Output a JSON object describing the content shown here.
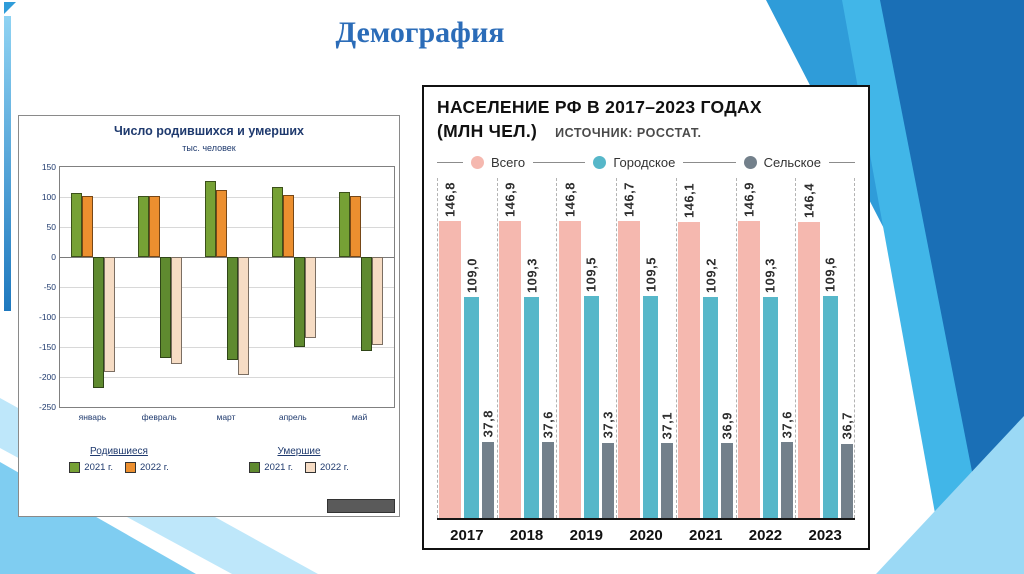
{
  "slide": {
    "title": "Демография"
  },
  "chart_data": [
    {
      "type": "bar",
      "title": "Число родившихся и умерших",
      "subtitle": "тыс. человек",
      "categories": [
        "январь",
        "февраль",
        "март",
        "апрель",
        "май"
      ],
      "ylim": [
        -250,
        150
      ],
      "ytick_step": 50,
      "series": [
        {
          "name": "Родившиеся 2021 г.",
          "color": "#76A135",
          "values": [
            107,
            102,
            127,
            117,
            108
          ]
        },
        {
          "name": "Родившиеся 2022 г.",
          "color": "#EC8F2F",
          "values": [
            102,
            102,
            112,
            103,
            102
          ]
        },
        {
          "name": "Умершие 2021 г.",
          "color": "#5F8A2F",
          "values": [
            -218,
            -168,
            -172,
            -150,
            -157
          ]
        },
        {
          "name": "Умершие 2022 г.",
          "color": "#F6DCC4",
          "values": [
            -192,
            -178,
            -197,
            -135,
            -147
          ]
        }
      ],
      "legend_groups": [
        {
          "title": "Родившиеся",
          "items": [
            {
              "label": "2021 г.",
              "color": "#76A135"
            },
            {
              "label": "2022 г.",
              "color": "#EC8F2F"
            }
          ]
        },
        {
          "title": "Умершие",
          "items": [
            {
              "label": "2021 г.",
              "color": "#5F8A2F"
            },
            {
              "label": "2022 г.",
              "color": "#F6DCC4"
            }
          ]
        }
      ]
    },
    {
      "type": "bar",
      "title_line1": "НАСЕЛЕНИЕ РФ В 2017–2023 ГОДАХ",
      "title_line2": "(МЛН ЧЕЛ.)",
      "source": "ИСТОЧНИК: РОССТАТ.",
      "categories": [
        "2017",
        "2018",
        "2019",
        "2020",
        "2021",
        "2022",
        "2023"
      ],
      "ylim": [
        0,
        168
      ],
      "series": [
        {
          "name": "Всего",
          "color": "#F5B8AF",
          "values": [
            146.8,
            146.9,
            146.8,
            146.7,
            146.1,
            146.9,
            146.4
          ]
        },
        {
          "name": "Городское",
          "color": "#56B7C9",
          "values": [
            109.0,
            109.3,
            109.5,
            109.5,
            109.2,
            109.3,
            109.6
          ]
        },
        {
          "name": "Сельское",
          "color": "#73808B",
          "values": [
            37.8,
            37.6,
            37.3,
            37.1,
            36.9,
            37.6,
            36.7
          ]
        }
      ]
    }
  ]
}
